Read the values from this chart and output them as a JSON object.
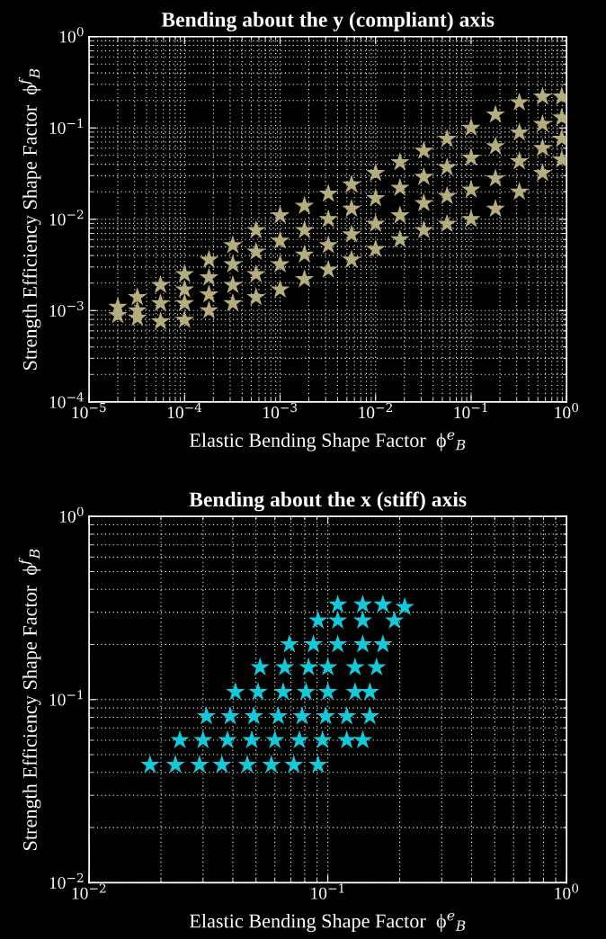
{
  "chart_data": [
    {
      "type": "scatter",
      "title": "Bending about the y (compliant) axis",
      "xlabel": "Elastic Bending Shape Factor  ϕ$^{e}$$_{B}$",
      "ylabel": "Strength Efficiency Shape Factor  ϕ$^{f}$$_{B}$",
      "log": "xy",
      "grid": true,
      "marker": "star",
      "xlim": [
        1e-05,
        1
      ],
      "ylim": [
        0.0001,
        1
      ],
      "xticks": [
        {
          "value": 1e-05,
          "label": "10$^{−5}$"
        },
        {
          "value": 0.0001,
          "label": "10$^{−4}$"
        },
        {
          "value": 0.001,
          "label": "10$^{−3}$"
        },
        {
          "value": 0.01,
          "label": "10$^{−2}$"
        },
        {
          "value": 0.1,
          "label": "10$^{−1}$"
        },
        {
          "value": 1,
          "label": "10$^{0}$"
        }
      ],
      "yticks": [
        {
          "value": 0.0001,
          "label": "10$^{−4}$"
        },
        {
          "value": 0.001,
          "label": "10$^{−3}$"
        },
        {
          "value": 0.01,
          "label": "10$^{−2}$"
        },
        {
          "value": 0.1,
          "label": "10$^{−1}$"
        },
        {
          "value": 1,
          "label": "10$^{0}$"
        }
      ],
      "series": [
        {
          "color": "#b5ad7f",
          "x": [
            2e-05,
            2e-05,
            3.2e-05,
            3.2e-05,
            3.2e-05,
            5.6e-05,
            5.6e-05,
            5.6e-05,
            0.0001,
            0.0001,
            0.0001,
            0.0001,
            0.00018,
            0.00018,
            0.00018,
            0.00018,
            0.00032,
            0.00032,
            0.00032,
            0.00032,
            0.00056,
            0.00056,
            0.00056,
            0.00056,
            0.001,
            0.001,
            0.001,
            0.001,
            0.0018,
            0.0018,
            0.0018,
            0.0018,
            0.0032,
            0.0032,
            0.0032,
            0.0032,
            0.0056,
            0.0056,
            0.0056,
            0.0056,
            0.01,
            0.01,
            0.01,
            0.01,
            0.018,
            0.018,
            0.018,
            0.018,
            0.032,
            0.032,
            0.032,
            0.032,
            0.056,
            0.056,
            0.056,
            0.056,
            0.1,
            0.1,
            0.1,
            0.1,
            0.18,
            0.18,
            0.18,
            0.18,
            0.32,
            0.32,
            0.32,
            0.32,
            0.56,
            0.56,
            0.56,
            0.56,
            0.89,
            0.89,
            0.89,
            0.89
          ],
          "values": [
            0.0011,
            0.00089,
            0.0014,
            0.001,
            0.00083,
            0.0019,
            0.0012,
            0.00076,
            0.0025,
            0.0017,
            0.0012,
            0.00079,
            0.0036,
            0.0023,
            0.0015,
            0.001,
            0.0052,
            0.0032,
            0.0019,
            0.0012,
            0.0076,
            0.0044,
            0.0025,
            0.0014,
            0.011,
            0.0058,
            0.0032,
            0.0017,
            0.014,
            0.0076,
            0.0041,
            0.0022,
            0.019,
            0.01,
            0.0052,
            0.0028,
            0.024,
            0.013,
            0.0068,
            0.0036,
            0.032,
            0.017,
            0.0089,
            0.0047,
            0.042,
            0.022,
            0.011,
            0.006,
            0.056,
            0.029,
            0.015,
            0.0076,
            0.076,
            0.037,
            0.018,
            0.0089,
            0.1,
            0.047,
            0.021,
            0.01,
            0.14,
            0.063,
            0.028,
            0.013,
            0.19,
            0.089,
            0.043,
            0.02,
            0.22,
            0.11,
            0.06,
            0.032,
            0.22,
            0.13,
            0.076,
            0.045
          ]
        }
      ]
    },
    {
      "type": "scatter",
      "title": "Bending about the x (stiff) axis",
      "xlabel": "Elastic Bending Shape Factor  ϕ$^{e}$$_{B}$",
      "ylabel": "Strength Efficiency Shape Factor  ϕ$^{f}$$_{B}$",
      "log": "xy",
      "grid": true,
      "marker": "star",
      "xlim": [
        0.01,
        1
      ],
      "ylim": [
        0.01,
        1
      ],
      "xticks": [
        {
          "value": 0.01,
          "label": "10$^{−2}$"
        },
        {
          "value": 0.1,
          "label": "10$^{−1}$"
        },
        {
          "value": 1,
          "label": "10$^{0}$"
        }
      ],
      "yticks": [
        {
          "value": 0.01,
          "label": "10$^{−2}$"
        },
        {
          "value": 0.1,
          "label": "10$^{−1}$"
        },
        {
          "value": 1,
          "label": "10$^{0}$"
        }
      ],
      "series": [
        {
          "color": "#17c8d8",
          "x": [
            0.018,
            0.023,
            0.029,
            0.036,
            0.046,
            0.058,
            0.072,
            0.091,
            0.024,
            0.03,
            0.038,
            0.048,
            0.06,
            0.076,
            0.095,
            0.12,
            0.14,
            0.031,
            0.039,
            0.049,
            0.062,
            0.078,
            0.098,
            0.12,
            0.15,
            0.041,
            0.051,
            0.065,
            0.081,
            0.1,
            0.13,
            0.15,
            0.052,
            0.066,
            0.083,
            0.1,
            0.13,
            0.16,
            0.069,
            0.087,
            0.11,
            0.14,
            0.17,
            0.091,
            0.11,
            0.14,
            0.19,
            0.11,
            0.14,
            0.17,
            0.21
          ],
          "values": [
            0.044,
            0.044,
            0.044,
            0.044,
            0.044,
            0.044,
            0.044,
            0.044,
            0.06,
            0.06,
            0.06,
            0.06,
            0.06,
            0.06,
            0.06,
            0.06,
            0.06,
            0.081,
            0.081,
            0.081,
            0.081,
            0.081,
            0.081,
            0.081,
            0.081,
            0.11,
            0.11,
            0.11,
            0.11,
            0.11,
            0.11,
            0.11,
            0.15,
            0.15,
            0.15,
            0.15,
            0.15,
            0.15,
            0.2,
            0.2,
            0.2,
            0.2,
            0.2,
            0.27,
            0.27,
            0.27,
            0.27,
            0.33,
            0.33,
            0.33,
            0.32
          ]
        }
      ]
    }
  ]
}
